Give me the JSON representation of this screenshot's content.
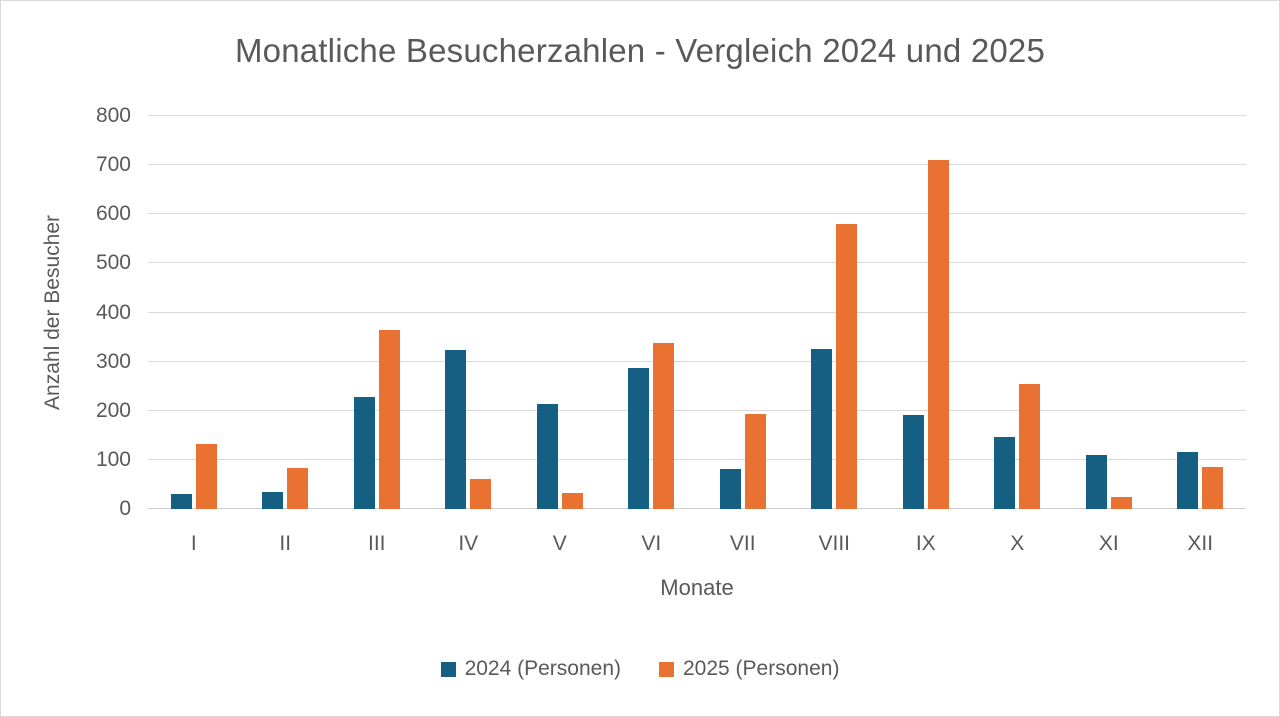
{
  "chart_data": {
    "type": "bar",
    "title": "Monatliche Besucherzahlen - Vergleich 2024 und 2025",
    "xlabel": "Monate",
    "ylabel": "Anzahl der Besucher",
    "categories": [
      "I",
      "II",
      "III",
      "IV",
      "V",
      "VI",
      "VII",
      "VIII",
      "IX",
      "X",
      "XI",
      "XII"
    ],
    "series": [
      {
        "name": "2024 (Personen)",
        "color": "#156082",
        "values": [
          30,
          35,
          228,
          324,
          213,
          288,
          81,
          325,
          191,
          146,
          110,
          117
        ]
      },
      {
        "name": "2025 (Personen)",
        "color": "#E97132",
        "values": [
          133,
          84,
          365,
          62,
          32,
          338,
          194,
          580,
          710,
          255,
          25,
          85
        ]
      }
    ],
    "ylim": [
      0,
      800
    ],
    "ytick_step": 100,
    "yticks": [
      "0",
      "100",
      "200",
      "300",
      "400",
      "500",
      "600",
      "700",
      "800"
    ],
    "grid": true,
    "legend_position": "bottom"
  },
  "colors": {
    "text": "#595959",
    "gridline": "#D9D9D9",
    "axis_line": "#CDCDCD",
    "background": "#FFFFFF",
    "border": "#D9D9D9",
    "series_2024": "#156082",
    "series_2025": "#E97132"
  }
}
